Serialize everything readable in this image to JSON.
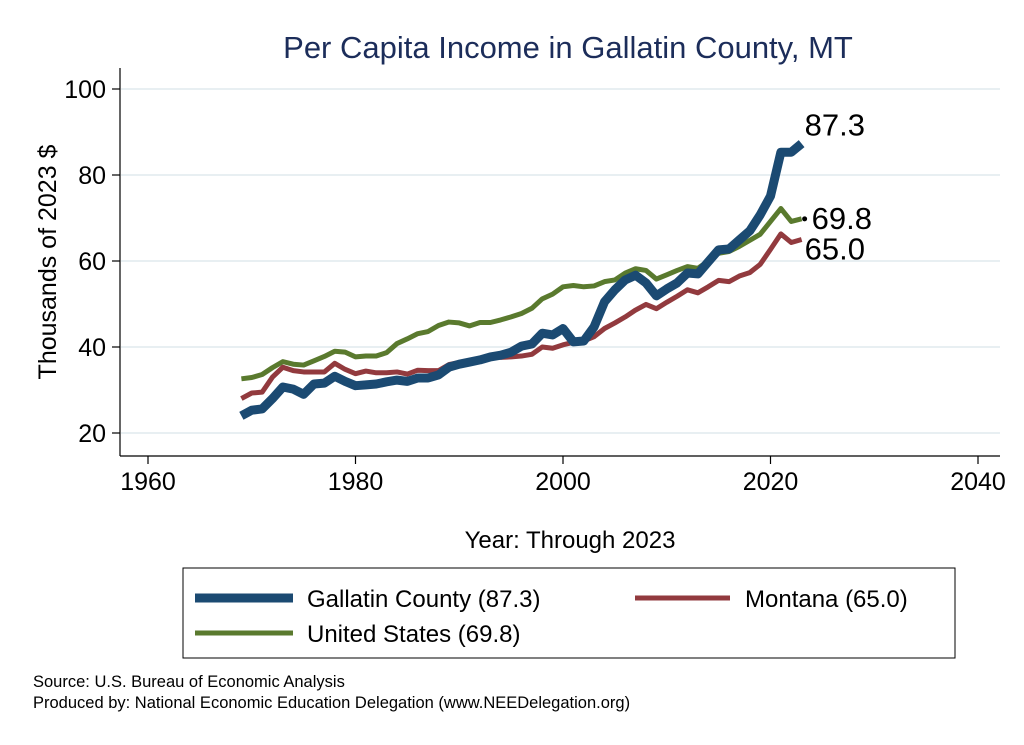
{
  "chart_data": {
    "type": "line",
    "title": "Per Capita Income in Gallatin County, MT",
    "xlabel": "Year: Through 2023",
    "ylabel": "Thousands of 2023 $",
    "xlim": [
      1960,
      2040
    ],
    "ylim": [
      20,
      100
    ],
    "xticks": [
      1960,
      1980,
      2000,
      2020,
      2040
    ],
    "yticks": [
      20,
      40,
      60,
      80,
      100
    ],
    "grid": true,
    "x": [
      1969,
      1970,
      1971,
      1972,
      1973,
      1974,
      1975,
      1976,
      1977,
      1978,
      1979,
      1980,
      1981,
      1982,
      1983,
      1984,
      1985,
      1986,
      1987,
      1988,
      1989,
      1990,
      1991,
      1992,
      1993,
      1994,
      1995,
      1996,
      1997,
      1998,
      1999,
      2000,
      2001,
      2002,
      2003,
      2004,
      2005,
      2006,
      2007,
      2008,
      2009,
      2010,
      2011,
      2012,
      2013,
      2014,
      2015,
      2016,
      2017,
      2018,
      2019,
      2020,
      2021,
      2022,
      2023
    ],
    "series": [
      {
        "name": "Gallatin County (87.3)",
        "color": "#1b4a72",
        "end_label": "87.3",
        "values": [
          24,
          25.3,
          25.6,
          28,
          30.7,
          30.2,
          29,
          31.4,
          31.6,
          33.2,
          32,
          31,
          31.2,
          31.4,
          31.9,
          32.3,
          32,
          32.8,
          32.8,
          33.5,
          35.3,
          36,
          36.5,
          37,
          37.7,
          38.1,
          38.8,
          40.2,
          40.7,
          43.2,
          42.8,
          44.3,
          41.2,
          41.4,
          44.7,
          50.5,
          53.3,
          55.6,
          56.7,
          54.9,
          51.9,
          53.5,
          54.9,
          57.2,
          57,
          59.8,
          62.6,
          62.8,
          64.9,
          67,
          70.7,
          75.1,
          85.3,
          85.3,
          87.3
        ]
      },
      {
        "name": "Montana (65.0)",
        "color": "#923a3e",
        "end_label": "65.0",
        "values": [
          28,
          29.3,
          29.5,
          33,
          35.3,
          34.5,
          34.2,
          34.2,
          34.2,
          36.2,
          34.8,
          33.8,
          34.4,
          34,
          34,
          34.2,
          33.7,
          34.6,
          34.5,
          34.5,
          35.9,
          36.4,
          36.7,
          37.2,
          38,
          37.6,
          37.7,
          37.9,
          38.3,
          40,
          39.7,
          40.5,
          41.1,
          41.4,
          42.4,
          44.3,
          45.6,
          47,
          48.6,
          49.9,
          48.9,
          50.4,
          51.8,
          53.3,
          52.6,
          54,
          55.5,
          55.2,
          56.5,
          57.3,
          59.2,
          62.7,
          66.3,
          64.3,
          65.0
        ]
      },
      {
        "name": "United States (69.8)",
        "color": "#5a7a2e",
        "end_label": "69.8",
        "values": [
          32.6,
          32.9,
          33.6,
          35.2,
          36.6,
          36,
          35.8,
          36.8,
          37.8,
          39,
          38.8,
          37.7,
          37.9,
          37.9,
          38.7,
          40.8,
          41.9,
          43.1,
          43.6,
          45,
          45.8,
          45.6,
          44.9,
          45.7,
          45.7,
          46.3,
          47,
          47.8,
          49,
          51.2,
          52.3,
          54,
          54.3,
          54,
          54.2,
          55.2,
          55.6,
          57.2,
          58.2,
          57.8,
          55.8,
          56.8,
          57.8,
          58.7,
          58.3,
          60,
          61.8,
          62.2,
          63.4,
          64.8,
          66.2,
          69.2,
          72.2,
          69.2,
          69.8
        ]
      }
    ],
    "legend": {
      "placement": "bottom",
      "entries": [
        "Gallatin County (87.3)",
        "Montana (65.0)",
        "United States (69.8)"
      ]
    }
  },
  "notes": {
    "source": "Source: U.S. Bureau of Economic Analysis",
    "produced_by": "Produced by: National Economic Education Delegation (www.NEEDelegation.org)"
  }
}
